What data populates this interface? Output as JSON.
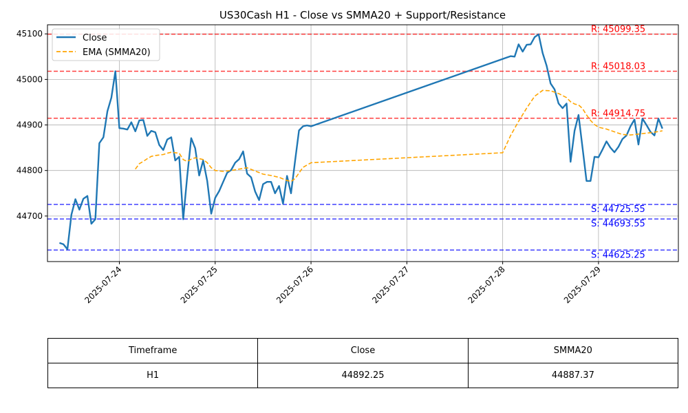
{
  "chart_data": {
    "type": "line",
    "title": "US30Cash H1 - Close vs SMMA20 + Support/Resistance",
    "xlabel": "",
    "ylabel": "",
    "xlim": [
      "2025-07-23 06:00",
      "2025-07-29 20:00"
    ],
    "ylim": [
      44600,
      45120
    ],
    "yticks": [
      44700,
      44800,
      44900,
      45000,
      45100
    ],
    "xticks": [
      "2025-07-24",
      "2025-07-25",
      "2025-07-26",
      "2025-07-27",
      "2025-07-28",
      "2025-07-29"
    ],
    "grid": true,
    "legend_position": "top-left",
    "series": [
      {
        "name": "Close",
        "color": "#1f77b4",
        "style": "solid",
        "points": [
          [
            "2025-07-23 09:00",
            44641
          ],
          [
            "2025-07-23 10:00",
            44638
          ],
          [
            "2025-07-23 11:00",
            44627
          ],
          [
            "2025-07-23 12:00",
            44703
          ],
          [
            "2025-07-23 13:00",
            44737
          ],
          [
            "2025-07-23 14:00",
            44714
          ],
          [
            "2025-07-23 15:00",
            44738
          ],
          [
            "2025-07-23 16:00",
            44744
          ],
          [
            "2025-07-23 17:00",
            44683
          ],
          [
            "2025-07-23 18:00",
            44693
          ],
          [
            "2025-07-23 19:00",
            44860
          ],
          [
            "2025-07-23 20:00",
            44873
          ],
          [
            "2025-07-23 21:00",
            44930
          ],
          [
            "2025-07-23 22:00",
            44960
          ],
          [
            "2025-07-23 23:00",
            45018
          ],
          [
            "2025-07-24 00:00",
            44893
          ],
          [
            "2025-07-24 01:00",
            44892
          ],
          [
            "2025-07-24 02:00",
            44890
          ],
          [
            "2025-07-24 03:00",
            44906
          ],
          [
            "2025-07-24 04:00",
            44886
          ],
          [
            "2025-07-24 05:00",
            44910
          ],
          [
            "2025-07-24 06:00",
            44911
          ],
          [
            "2025-07-24 07:00",
            44876
          ],
          [
            "2025-07-24 08:00",
            44887
          ],
          [
            "2025-07-24 09:00",
            44884
          ],
          [
            "2025-07-24 10:00",
            44856
          ],
          [
            "2025-07-24 11:00",
            44845
          ],
          [
            "2025-07-24 12:00",
            44868
          ],
          [
            "2025-07-24 13:00",
            44873
          ],
          [
            "2025-07-24 14:00",
            44822
          ],
          [
            "2025-07-24 15:00",
            44830
          ],
          [
            "2025-07-24 16:00",
            44693
          ],
          [
            "2025-07-24 17:00",
            44787
          ],
          [
            "2025-07-24 18:00",
            44871
          ],
          [
            "2025-07-24 19:00",
            44849
          ],
          [
            "2025-07-24 20:00",
            44789
          ],
          [
            "2025-07-24 21:00",
            44822
          ],
          [
            "2025-07-24 22:00",
            44777
          ],
          [
            "2025-07-24 23:00",
            44705
          ],
          [
            "2025-07-25 00:00",
            44740
          ],
          [
            "2025-07-25 01:00",
            44755
          ],
          [
            "2025-07-25 02:00",
            44775
          ],
          [
            "2025-07-25 03:00",
            44795
          ],
          [
            "2025-07-25 04:00",
            44801
          ],
          [
            "2025-07-25 05:00",
            44817
          ],
          [
            "2025-07-25 06:00",
            44825
          ],
          [
            "2025-07-25 07:00",
            44842
          ],
          [
            "2025-07-25 08:00",
            44793
          ],
          [
            "2025-07-25 09:00",
            44785
          ],
          [
            "2025-07-25 10:00",
            44754
          ],
          [
            "2025-07-25 11:00",
            44735
          ],
          [
            "2025-07-25 12:00",
            44770
          ],
          [
            "2025-07-25 13:00",
            44775
          ],
          [
            "2025-07-25 14:00",
            44775
          ],
          [
            "2025-07-25 15:00",
            44750
          ],
          [
            "2025-07-25 16:00",
            44766
          ],
          [
            "2025-07-25 17:00",
            44727
          ],
          [
            "2025-07-25 18:00",
            44788
          ],
          [
            "2025-07-25 19:00",
            44750
          ],
          [
            "2025-07-25 20:00",
            44820
          ],
          [
            "2025-07-25 21:00",
            44888
          ],
          [
            "2025-07-25 22:00",
            44897
          ],
          [
            "2025-07-25 23:00",
            44899
          ],
          [
            "2025-07-26 00:00",
            44897
          ],
          [
            "2025-07-28 01:00",
            45048
          ],
          [
            "2025-07-28 02:00",
            45051
          ],
          [
            "2025-07-28 03:00",
            45050
          ],
          [
            "2025-07-28 04:00",
            45077
          ],
          [
            "2025-07-28 05:00",
            45061
          ],
          [
            "2025-07-28 06:00",
            45076
          ],
          [
            "2025-07-28 07:00",
            45077
          ],
          [
            "2025-07-28 08:00",
            45093
          ],
          [
            "2025-07-28 09:00",
            45099
          ],
          [
            "2025-07-28 10:00",
            45058
          ],
          [
            "2025-07-28 11:00",
            45030
          ],
          [
            "2025-07-28 12:00",
            44991
          ],
          [
            "2025-07-28 13:00",
            44978
          ],
          [
            "2025-07-28 14:00",
            44947
          ],
          [
            "2025-07-28 15:00",
            44937
          ],
          [
            "2025-07-28 16:00",
            44947
          ],
          [
            "2025-07-28 17:00",
            44819
          ],
          [
            "2025-07-28 18:00",
            44887
          ],
          [
            "2025-07-28 19:00",
            44922
          ],
          [
            "2025-07-28 20:00",
            44850
          ],
          [
            "2025-07-28 21:00",
            44777
          ],
          [
            "2025-07-28 22:00",
            44777
          ],
          [
            "2025-07-28 23:00",
            44830
          ],
          [
            "2025-07-29 00:00",
            44829
          ],
          [
            "2025-07-29 01:00",
            44846
          ],
          [
            "2025-07-29 02:00",
            44864
          ],
          [
            "2025-07-29 03:00",
            44850
          ],
          [
            "2025-07-29 04:00",
            44840
          ],
          [
            "2025-07-29 05:00",
            44852
          ],
          [
            "2025-07-29 06:00",
            44869
          ],
          [
            "2025-07-29 07:00",
            44877
          ],
          [
            "2025-07-29 08:00",
            44897
          ],
          [
            "2025-07-29 09:00",
            44912
          ],
          [
            "2025-07-29 10:00",
            44857
          ],
          [
            "2025-07-29 11:00",
            44914
          ],
          [
            "2025-07-29 12:00",
            44900
          ],
          [
            "2025-07-29 13:00",
            44885
          ],
          [
            "2025-07-29 14:00",
            44877
          ],
          [
            "2025-07-29 15:00",
            44914
          ],
          [
            "2025-07-29 16:00",
            44892
          ]
        ]
      },
      {
        "name": "EMA (SMMA20)",
        "color": "#ffa500",
        "style": "dashed",
        "points": [
          [
            "2025-07-24 04:00",
            44803
          ],
          [
            "2025-07-24 05:00",
            44815
          ],
          [
            "2025-07-24 06:00",
            44820
          ],
          [
            "2025-07-24 07:00",
            44826
          ],
          [
            "2025-07-24 08:00",
            44831
          ],
          [
            "2025-07-24 09:00",
            44833
          ],
          [
            "2025-07-24 10:00",
            44834
          ],
          [
            "2025-07-24 11:00",
            44835
          ],
          [
            "2025-07-24 12:00",
            44838
          ],
          [
            "2025-07-24 13:00",
            44840
          ],
          [
            "2025-07-24 14:00",
            44839
          ],
          [
            "2025-07-24 15:00",
            44838
          ],
          [
            "2025-07-24 16:00",
            44824
          ],
          [
            "2025-07-24 17:00",
            44820
          ],
          [
            "2025-07-24 18:00",
            44825
          ],
          [
            "2025-07-24 19:00",
            44828
          ],
          [
            "2025-07-24 20:00",
            44826
          ],
          [
            "2025-07-24 21:00",
            44824
          ],
          [
            "2025-07-24 22:00",
            44817
          ],
          [
            "2025-07-24 23:00",
            44806
          ],
          [
            "2025-07-25 00:00",
            44800
          ],
          [
            "2025-07-25 02:00",
            44798
          ],
          [
            "2025-07-25 04:00",
            44800
          ],
          [
            "2025-07-25 06:00",
            44803
          ],
          [
            "2025-07-25 08:00",
            44806
          ],
          [
            "2025-07-25 10:00",
            44799
          ],
          [
            "2025-07-25 12:00",
            44792
          ],
          [
            "2025-07-25 14:00",
            44789
          ],
          [
            "2025-07-25 16:00",
            44785
          ],
          [
            "2025-07-25 18:00",
            44778
          ],
          [
            "2025-07-25 19:00",
            44776
          ],
          [
            "2025-07-25 20:00",
            44782
          ],
          [
            "2025-07-25 22:00",
            44807
          ],
          [
            "2025-07-26 00:00",
            44817
          ],
          [
            "2025-07-28 00:00",
            44839
          ],
          [
            "2025-07-28 02:00",
            44877
          ],
          [
            "2025-07-28 04:00",
            44908
          ],
          [
            "2025-07-28 06:00",
            44937
          ],
          [
            "2025-07-28 08:00",
            44963
          ],
          [
            "2025-07-28 10:00",
            44976
          ],
          [
            "2025-07-28 12:00",
            44975
          ],
          [
            "2025-07-28 14:00",
            44969
          ],
          [
            "2025-07-28 16:00",
            44960
          ],
          [
            "2025-07-28 17:00",
            44951
          ],
          [
            "2025-07-28 18:00",
            44946
          ],
          [
            "2025-07-28 19:00",
            44944
          ],
          [
            "2025-07-28 20:00",
            44936
          ],
          [
            "2025-07-28 21:00",
            44922
          ],
          [
            "2025-07-28 22:00",
            44910
          ],
          [
            "2025-07-28 23:00",
            44901
          ],
          [
            "2025-07-29 00:00",
            44895
          ],
          [
            "2025-07-29 02:00",
            44891
          ],
          [
            "2025-07-29 04:00",
            44885
          ],
          [
            "2025-07-29 06:00",
            44879
          ],
          [
            "2025-07-29 08:00",
            44878
          ],
          [
            "2025-07-29 10:00",
            44880
          ],
          [
            "2025-07-29 12:00",
            44882
          ],
          [
            "2025-07-29 14:00",
            44884
          ],
          [
            "2025-07-29 16:00",
            44887
          ]
        ]
      }
    ],
    "levels": [
      {
        "kind": "resistance",
        "value": 45099.35,
        "label": "R: 45099.35",
        "color": "#ff0000"
      },
      {
        "kind": "resistance",
        "value": 45018.03,
        "label": "R: 45018.03",
        "color": "#ff0000"
      },
      {
        "kind": "resistance",
        "value": 44914.75,
        "label": "R: 44914.75",
        "color": "#ff0000"
      },
      {
        "kind": "support",
        "value": 44725.55,
        "label": "S: 44725.55",
        "color": "#0000ff"
      },
      {
        "kind": "support",
        "value": 44693.55,
        "label": "S: 44693.55",
        "color": "#0000ff"
      },
      {
        "kind": "support",
        "value": 44625.25,
        "label": "S: 44625.25",
        "color": "#0000ff"
      }
    ]
  },
  "table": {
    "headers": [
      "Timeframe",
      "Close",
      "SMMA20"
    ],
    "rows": [
      [
        "H1",
        "44892.25",
        "44887.37"
      ]
    ]
  }
}
